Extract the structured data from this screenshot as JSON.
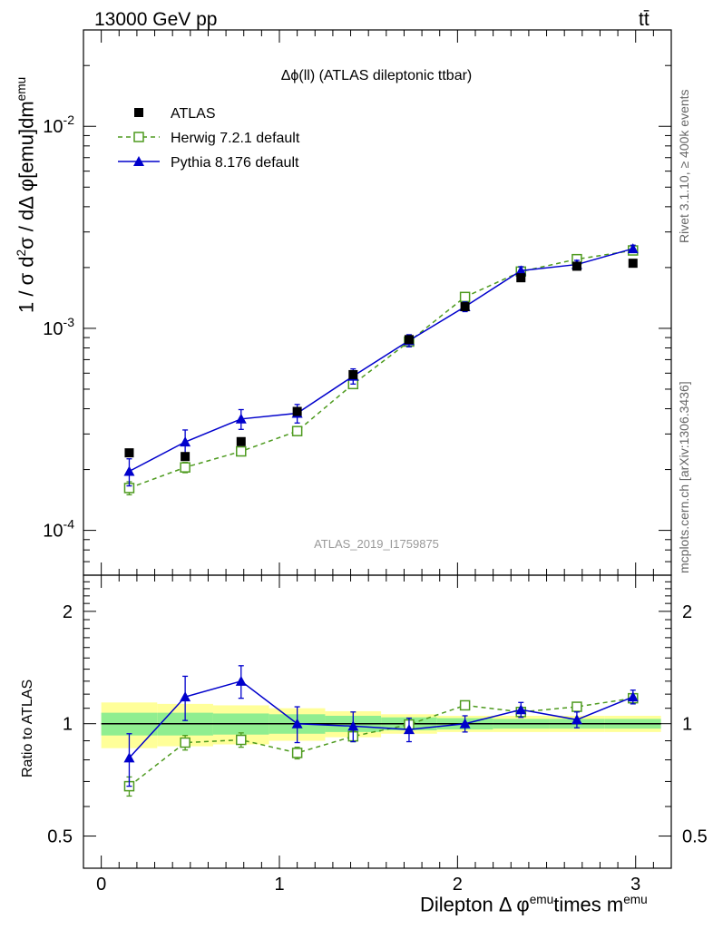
{
  "header": {
    "energy_label": "13000 GeV pp",
    "process_label": "tt̄"
  },
  "side_labels": {
    "rivet": "Rivet 3.1.10, ≥ 400k events",
    "mcplots": "mcplots.cern.ch [arXiv:1306.3436]"
  },
  "axes": {
    "ylabel_main_parts": [
      "1 / σ  d",
      "2",
      "σ / dΔ φ[emu]dm",
      "emu"
    ],
    "ylabel_ratio": "Ratio to ATLAS",
    "xlabel_parts": [
      "Dilepton Δ φ",
      "emu",
      "times m",
      "emu"
    ]
  },
  "chart_data": [
    {
      "type": "scatter",
      "title": "Δϕ(ll) (ATLAS dileptonic ttbar)",
      "watermark": "ATLAS_2019_I1759875",
      "y_scale": "log",
      "ylim": [
        6e-05,
        0.03
      ],
      "y_ticks": [
        {
          "value": 0.0001,
          "base": "10",
          "exp": "-4"
        },
        {
          "value": 0.001,
          "base": "10",
          "exp": "-3"
        },
        {
          "value": 0.01,
          "base": "10",
          "exp": "-2"
        }
      ],
      "xlim": [
        -0.1,
        3.2
      ],
      "x": [
        0.157,
        0.471,
        0.785,
        1.1,
        1.414,
        1.728,
        2.042,
        2.356,
        2.67,
        2.985
      ],
      "series": [
        {
          "name": "ATLAS",
          "color": "#000000",
          "marker": "filled-square",
          "values": [
            0.000242,
            0.000232,
            0.000275,
            0.000388,
            0.00059,
            0.00088,
            0.00128,
            0.00178,
            0.00203,
            0.0021
          ]
        },
        {
          "name": "Herwig 7.2.1 default",
          "color": "#4d9a1e",
          "marker": "open-square",
          "line": "dashed",
          "values": [
            0.000162,
            0.000205,
            0.000246,
            0.00031,
            0.00053,
            0.00086,
            0.00143,
            0.00191,
            0.0022,
            0.00243
          ],
          "errors": [
            1.2e-05,
            1.2e-05,
            1.2e-05,
            1.5e-05,
            2e-05,
            3e-05,
            4e-05,
            6e-05,
            6e-05,
            7e-05
          ]
        },
        {
          "name": "Pythia 8.176 default",
          "color": "#0000cc",
          "marker": "filled-triangle",
          "line": "solid",
          "values": [
            0.000196,
            0.000274,
            0.000356,
            0.00038,
            0.00058,
            0.00087,
            0.00128,
            0.00193,
            0.00207,
            0.00248
          ],
          "errors": [
            3e-05,
            4e-05,
            4e-05,
            4e-05,
            5e-05,
            6e-05,
            7e-05,
            9e-05,
            0.0001,
            0.0001
          ]
        }
      ],
      "legend_position": "top-left"
    },
    {
      "type": "scatter",
      "ylabel": "Ratio to ATLAS",
      "y_scale": "log",
      "ylim": [
        0.41,
        2.5
      ],
      "y_ticks": [
        {
          "value": 0.5,
          "label": "0.5"
        },
        {
          "value": 1,
          "label": "1"
        },
        {
          "value": 2,
          "label": "2"
        }
      ],
      "x_ticks": [
        {
          "value": 0,
          "label": "0"
        },
        {
          "value": 1,
          "label": "1"
        },
        {
          "value": 2,
          "label": "2"
        },
        {
          "value": 3,
          "label": "3"
        }
      ],
      "xlim": [
        -0.1,
        3.2
      ],
      "bin_edges": [
        0,
        0.314,
        0.628,
        0.942,
        1.257,
        1.571,
        1.885,
        2.199,
        2.513,
        2.827,
        3.142
      ],
      "band_stat": [
        0.07,
        0.07,
        0.065,
        0.06,
        0.05,
        0.04,
        0.035,
        0.03,
        0.03,
        0.03
      ],
      "band_total": [
        0.14,
        0.13,
        0.12,
        0.1,
        0.08,
        0.06,
        0.05,
        0.05,
        0.05,
        0.05
      ],
      "band_colors": {
        "stat": "#90ee90",
        "total": "#ffff99"
      },
      "x": [
        0.157,
        0.471,
        0.785,
        1.1,
        1.414,
        1.728,
        2.042,
        2.356,
        2.67,
        2.985
      ],
      "series": [
        {
          "name": "Herwig 7.2.1 default",
          "color": "#4d9a1e",
          "marker": "open-square",
          "line": "dashed",
          "values": [
            0.68,
            0.89,
            0.905,
            0.835,
            0.925,
            0.995,
            1.12,
            1.075,
            1.11,
            1.17
          ],
          "errors": [
            0.04,
            0.04,
            0.04,
            0.03,
            0.03,
            0.03,
            0.03,
            0.03,
            0.03,
            0.03
          ]
        },
        {
          "name": "Pythia 8.176 default",
          "color": "#0000cc",
          "marker": "filled-triangle",
          "line": "solid",
          "values": [
            0.81,
            1.18,
            1.3,
            1.0,
            0.985,
            0.965,
            1.0,
            1.09,
            1.025,
            1.18
          ],
          "errors": [
            0.13,
            0.16,
            0.13,
            0.11,
            0.09,
            0.07,
            0.05,
            0.05,
            0.05,
            0.05
          ]
        }
      ]
    }
  ]
}
